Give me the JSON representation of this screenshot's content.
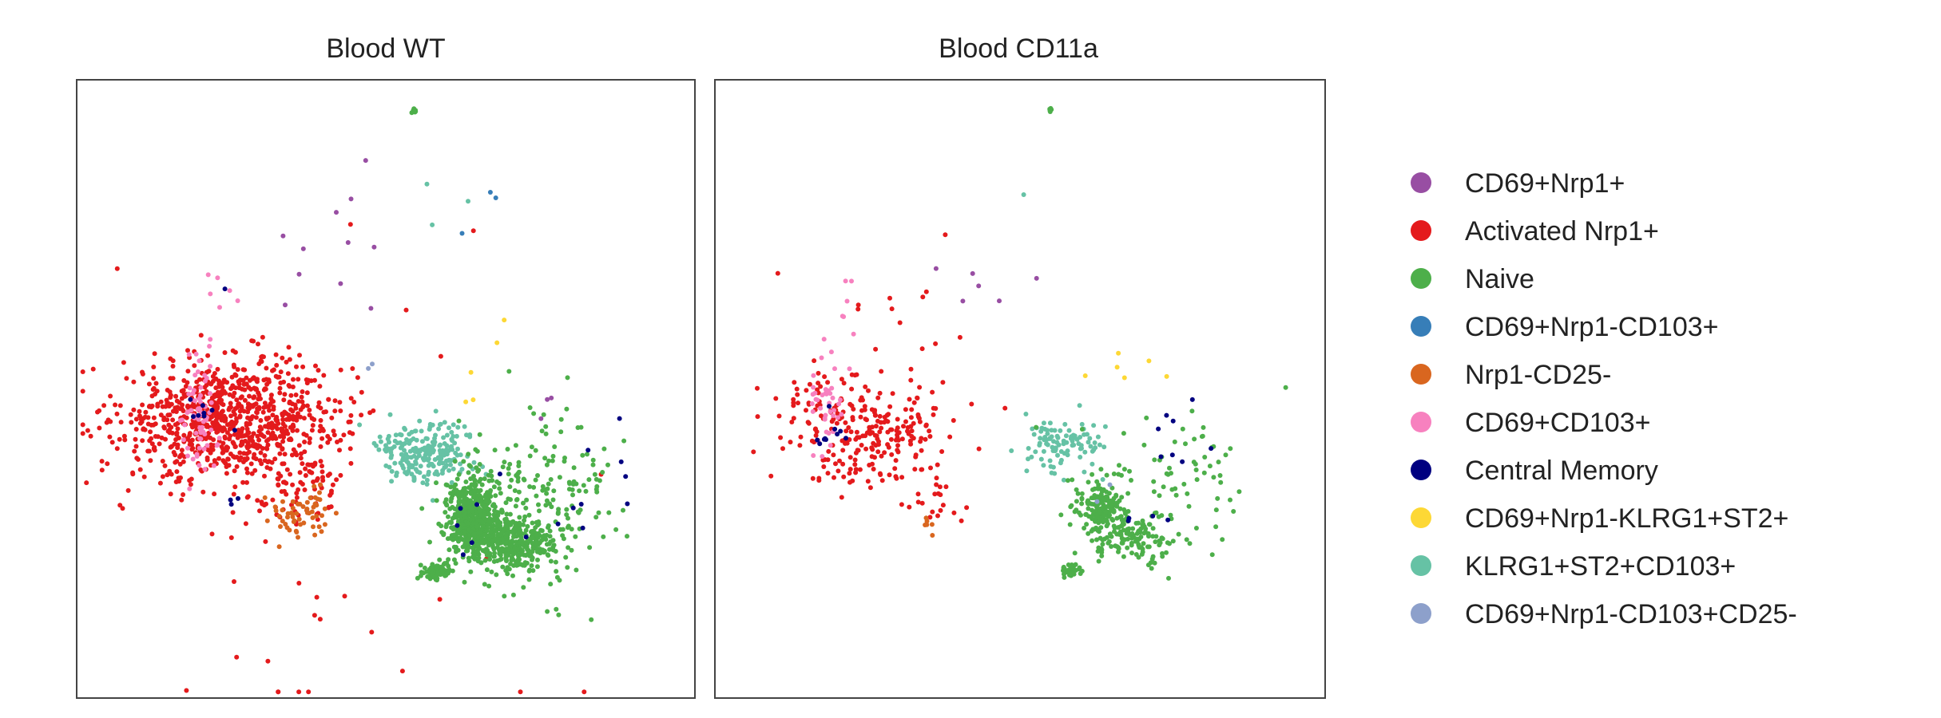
{
  "chart_data": {
    "type": "scatter",
    "axes_visible": false,
    "grid": false,
    "legend_position": "right",
    "legend": [
      {
        "label": "CD69+Nrp1+",
        "color": "#984ea3"
      },
      {
        "label": "Activated Nrp1+",
        "color": "#e41a1c"
      },
      {
        "label": "Naive",
        "color": "#4daf4a"
      },
      {
        "label": "CD69+Nrp1-CD103+",
        "color": "#377eb8"
      },
      {
        "label": "Nrp1-CD25-",
        "color": "#d9661f"
      },
      {
        "label": "CD69+CD103+",
        "color": "#f781bf"
      },
      {
        "label": "Central Memory",
        "color": "#000080"
      },
      {
        "label": "CD69+Nrp1-KLRG1+ST2+",
        "color": "#fdd835"
      },
      {
        "label": "KLRG1+ST2+CD103+",
        "color": "#66c2a5"
      },
      {
        "label": "CD69+Nrp1-CD103+CD25-",
        "color": "#8da0cb"
      }
    ],
    "xlim": [
      0,
      100
    ],
    "ylim": [
      0,
      100
    ],
    "panels": [
      {
        "title": "Blood WT",
        "clusters": [
          {
            "class": "Activated Nrp1+",
            "cx": 25,
            "cy": 45,
            "sx": 9,
            "sy": 5,
            "n": 900
          },
          {
            "class": "Activated Nrp1+",
            "cx": 37,
            "cy": 34,
            "sx": 3,
            "sy": 3,
            "n": 60
          },
          {
            "class": "Activated Nrp1+",
            "cx": 40,
            "cy": 22,
            "sx": 25,
            "sy": 25,
            "n": 35
          },
          {
            "class": "CD69+CD103+",
            "cx": 20,
            "cy": 45,
            "sx": 1.5,
            "sy": 5,
            "n": 70
          },
          {
            "class": "CD69+CD103+",
            "cx": 23,
            "cy": 66,
            "sx": 1.5,
            "sy": 1.5,
            "n": 6
          },
          {
            "class": "Nrp1-CD25-",
            "cx": 35,
            "cy": 29,
            "sx": 2,
            "sy": 2,
            "n": 40
          },
          {
            "class": "Nrp1-CD25-",
            "cx": 39,
            "cy": 31,
            "sx": 2,
            "sy": 2,
            "n": 20
          },
          {
            "class": "KLRG1+ST2+CD103+",
            "cx": 56.5,
            "cy": 40,
            "sx": 4,
            "sy": 2.5,
            "n": 220
          },
          {
            "class": "KLRG1+ST2+CD103+",
            "cx": 55,
            "cy": 80,
            "sx": 4,
            "sy": 4,
            "n": 3
          },
          {
            "class": "Naive",
            "cx": 64,
            "cy": 29,
            "sx": 2.2,
            "sy": 3.2,
            "n": 550
          },
          {
            "class": "Naive",
            "cx": 71,
            "cy": 25,
            "sx": 2.8,
            "sy": 2,
            "n": 250
          },
          {
            "class": "Naive",
            "cx": 58.5,
            "cy": 20.5,
            "sx": 1.2,
            "sy": 0.8,
            "n": 70
          },
          {
            "class": "Naive",
            "cx": 74,
            "cy": 31,
            "sx": 6,
            "sy": 7,
            "n": 220
          },
          {
            "class": "Naive",
            "cx": 54.5,
            "cy": 95,
            "sx": 0.2,
            "sy": 0.2,
            "n": 10
          },
          {
            "class": "Central Memory",
            "cx": 22,
            "cy": 46,
            "sx": 3,
            "sy": 1.5,
            "n": 8
          },
          {
            "class": "Central Memory",
            "cx": 78,
            "cy": 34,
            "sx": 7,
            "sy": 9,
            "n": 16
          },
          {
            "class": "Central Memory",
            "cx": 25,
            "cy": 32,
            "sx": 0.6,
            "sy": 0.6,
            "n": 3
          },
          {
            "class": "Central Memory",
            "cx": 24,
            "cy": 66,
            "sx": 0.3,
            "sy": 0.3,
            "n": 1
          },
          {
            "class": "CD69+Nrp1+",
            "cx": 40,
            "cy": 72,
            "sx": 8,
            "sy": 6,
            "n": 11
          },
          {
            "class": "CD69+Nrp1+",
            "cx": 77,
            "cy": 48,
            "sx": 2,
            "sy": 2,
            "n": 3
          },
          {
            "class": "CD69+Nrp1-CD103+",
            "cx": 65,
            "cy": 75,
            "sx": 5,
            "sy": 4,
            "n": 3
          },
          {
            "class": "CD69+Nrp1-KLRG1+ST2+",
            "cx": 64,
            "cy": 52,
            "sx": 2.5,
            "sy": 4,
            "n": 5
          },
          {
            "class": "CD69+Nrp1-CD103+CD25-",
            "cx": 47,
            "cy": 54,
            "sx": 2,
            "sy": 1,
            "n": 2
          }
        ]
      },
      {
        "title": "Blood CD11a",
        "clusters": [
          {
            "class": "Activated Nrp1+",
            "cx": 24,
            "cy": 44,
            "sx": 7,
            "sy": 5,
            "n": 260
          },
          {
            "class": "Activated Nrp1+",
            "cx": 37,
            "cy": 32,
            "sx": 3,
            "sy": 2.5,
            "n": 20
          },
          {
            "class": "Activated Nrp1+",
            "cx": 30,
            "cy": 60,
            "sx": 8,
            "sy": 12,
            "n": 15
          },
          {
            "class": "CD69+CD103+",
            "cx": 18.5,
            "cy": 47,
            "sx": 1.3,
            "sy": 4,
            "n": 40
          },
          {
            "class": "CD69+CD103+",
            "cx": 22,
            "cy": 62,
            "sx": 2,
            "sy": 3,
            "n": 6
          },
          {
            "class": "Nrp1-CD25-",
            "cx": 35,
            "cy": 28,
            "sx": 1,
            "sy": 1,
            "n": 6
          },
          {
            "class": "KLRG1+ST2+CD103+",
            "cx": 57,
            "cy": 41,
            "sx": 3,
            "sy": 2,
            "n": 100
          },
          {
            "class": "KLRG1+ST2+CD103+",
            "cx": 50.5,
            "cy": 82,
            "sx": 0.3,
            "sy": 0.3,
            "n": 1
          },
          {
            "class": "Naive",
            "cx": 63.5,
            "cy": 30,
            "sx": 2,
            "sy": 3,
            "n": 200
          },
          {
            "class": "Naive",
            "cx": 69,
            "cy": 26,
            "sx": 2.5,
            "sy": 1.8,
            "n": 100
          },
          {
            "class": "Naive",
            "cx": 58.5,
            "cy": 20.5,
            "sx": 0.8,
            "sy": 0.6,
            "n": 30
          },
          {
            "class": "Naive",
            "cx": 74,
            "cy": 35,
            "sx": 7,
            "sy": 7,
            "n": 70
          },
          {
            "class": "Naive",
            "cx": 55,
            "cy": 95,
            "sx": 0.2,
            "sy": 0.2,
            "n": 6
          },
          {
            "class": "Central Memory",
            "cx": 19,
            "cy": 44,
            "sx": 2,
            "sy": 1.5,
            "n": 10
          },
          {
            "class": "Central Memory",
            "cx": 74,
            "cy": 40,
            "sx": 5,
            "sy": 7,
            "n": 12
          },
          {
            "class": "CD69+Nrp1+",
            "cx": 43,
            "cy": 66,
            "sx": 5,
            "sy": 4,
            "n": 6
          },
          {
            "class": "CD69+Nrp1-KLRG1+ST2+",
            "cx": 67,
            "cy": 54,
            "sx": 3,
            "sy": 2,
            "n": 6
          },
          {
            "class": "CD69+Nrp1-CD103+CD25-",
            "cx": 63,
            "cy": 33,
            "sx": 1,
            "sy": 1,
            "n": 2
          }
        ]
      }
    ]
  }
}
